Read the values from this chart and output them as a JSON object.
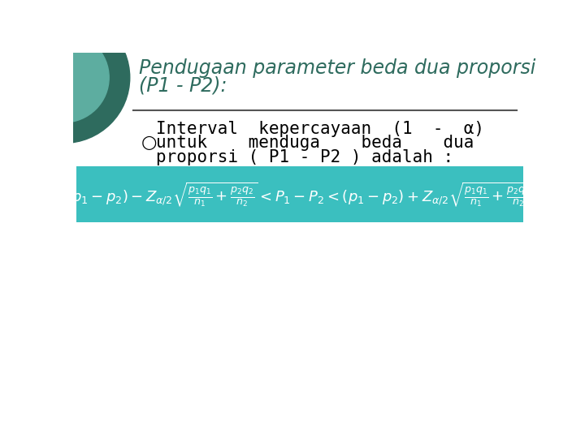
{
  "background_color": "#ffffff",
  "title_line1": "Pendugaan parameter beda dua proporsi",
  "title_line2": "(P1 - P2):",
  "title_color": "#2E6B5E",
  "title_fontsize": 17,
  "bullet_text_line1": "Interval  kepercayaan  (1  -  α)",
  "bullet_text_line2": "untuk    menduga    beda    dua",
  "bullet_text_line3": "proporsi ( P1 - P2 ) adalah :",
  "bullet_fontsize": 15,
  "bullet_color": "#000000",
  "formula_bg_color": "#3BBFBF",
  "formula_text_color": "#ffffff",
  "separator_color": "#555555",
  "circle_color_outer": "#2E6B5E",
  "circle_color_inner": "#5DADA0",
  "slide_bg": "#ffffff"
}
